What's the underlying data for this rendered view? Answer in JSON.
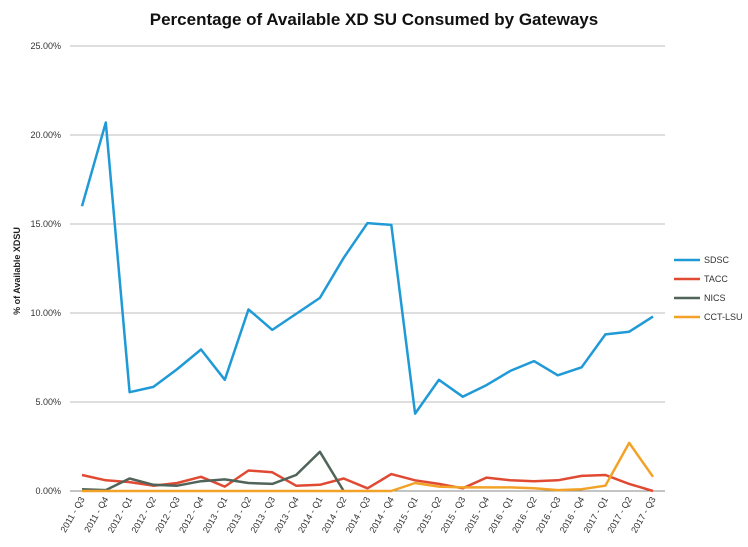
{
  "chart_data": {
    "type": "line",
    "title": "Percentage of Available XD SU Consumed by Gateways",
    "xlabel": "",
    "ylabel": "% of Available XDSU",
    "ylim": [
      0,
      25
    ],
    "y_ticks": [
      "0.00%",
      "5.00%",
      "10.00%",
      "15.00%",
      "20.00%",
      "25.00%"
    ],
    "y_tick_values": [
      0,
      5,
      10,
      15,
      20,
      25
    ],
    "grid": true,
    "legend_position": "right",
    "categories": [
      "2011 - Q3",
      "2011 - Q4",
      "2012 - Q1",
      "2012 - Q2",
      "2012 - Q3",
      "2012 - Q4",
      "2013 - Q1",
      "2013 - Q2",
      "2013 - Q3",
      "2013 - Q4",
      "2014 - Q1",
      "2014 - Q2",
      "2014 - Q3",
      "2014 - Q4",
      "2015 - Q1",
      "2015 - Q2",
      "2015 - Q3",
      "2015 - Q4",
      "2016 - Q1",
      "2016 - Q2",
      "2016 - Q3",
      "2016 - Q4",
      "2017 - Q1",
      "2017 - Q2",
      "2017 - Q3"
    ],
    "series": [
      {
        "name": "SDSC",
        "color": "#1f9ad6",
        "values": [
          16.0,
          20.7,
          5.55,
          5.85,
          6.85,
          7.95,
          6.25,
          10.2,
          9.05,
          9.95,
          10.85,
          13.1,
          15.05,
          14.95,
          4.35,
          6.25,
          5.3,
          5.95,
          6.75,
          7.3,
          6.5,
          6.95,
          8.8,
          8.95,
          9.8
        ]
      },
      {
        "name": "TACC",
        "color": "#e04a32",
        "values": [
          0.9,
          0.6,
          0.5,
          0.3,
          0.45,
          0.8,
          0.25,
          1.15,
          1.05,
          0.3,
          0.35,
          0.7,
          0.15,
          0.95,
          0.6,
          0.4,
          0.15,
          0.75,
          0.6,
          0.55,
          0.6,
          0.85,
          0.9,
          0.4,
          0.0
        ]
      },
      {
        "name": "NICS",
        "color": "#51645a",
        "values": [
          0.1,
          0.05,
          0.7,
          0.35,
          0.3,
          0.55,
          0.65,
          0.45,
          0.4,
          0.9,
          2.2,
          0.0,
          null,
          null,
          null,
          null,
          null,
          null,
          null,
          null,
          null,
          null,
          null,
          null,
          null
        ]
      },
      {
        "name": "CCT-LSU",
        "color": "#f2a227",
        "values": [
          0.0,
          0.0,
          0.0,
          0.0,
          0.0,
          0.0,
          0.0,
          0.0,
          0.0,
          0.0,
          0.0,
          0.0,
          0.0,
          0.0,
          0.45,
          0.25,
          0.2,
          0.2,
          0.2,
          0.15,
          0.05,
          0.1,
          0.3,
          2.7,
          0.8
        ]
      }
    ]
  }
}
